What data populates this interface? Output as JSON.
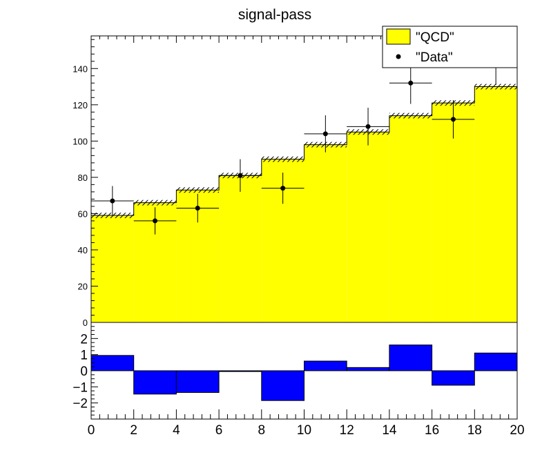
{
  "chart_data": [
    {
      "type": "bar",
      "title": "signal-pass",
      "xlabel": "",
      "ylabel": "",
      "xlim": [
        0,
        20
      ],
      "ylim": [
        0,
        158
      ],
      "yticks": [
        0,
        20,
        40,
        60,
        80,
        100,
        120,
        140
      ],
      "ytick_labels": [
        "0",
        "20",
        "40",
        "60",
        "80",
        "100",
        "120",
        "140"
      ],
      "bin_edges": [
        0,
        2,
        4,
        6,
        8,
        10,
        12,
        14,
        16,
        18,
        20
      ],
      "legend_position": "top-right",
      "series": [
        {
          "name": "\"QCD\"",
          "style": "filled-histogram",
          "color": "#ffff00",
          "values": [
            59,
            66,
            73,
            81,
            90,
            98,
            105,
            114,
            121,
            130
          ],
          "uncertainty": [
            1.5,
            1.5,
            1.5,
            1.5,
            1.5,
            1.5,
            1.5,
            1.5,
            1.5,
            1.5
          ]
        },
        {
          "name": "\"Data\"",
          "style": "points-with-errors",
          "color": "#000000",
          "x": [
            1,
            3,
            5,
            7,
            9,
            11,
            13,
            15,
            17,
            19
          ],
          "values": [
            67,
            56,
            63,
            81,
            74,
            104,
            108,
            132,
            112,
            143
          ],
          "errors": [
            8.2,
            7.5,
            7.9,
            9.0,
            8.6,
            10.2,
            10.4,
            11.5,
            10.6,
            12.0
          ]
        }
      ]
    },
    {
      "type": "bar",
      "title": "",
      "xlabel": "",
      "ylabel": "",
      "xlim": [
        0,
        20
      ],
      "ylim": [
        -3,
        3
      ],
      "xticks": [
        0,
        2,
        4,
        6,
        8,
        10,
        12,
        14,
        16,
        18,
        20
      ],
      "xtick_labels": [
        "0",
        "2",
        "4",
        "6",
        "8",
        "10",
        "12",
        "14",
        "16",
        "18",
        "20"
      ],
      "yticks": [
        -2,
        -1,
        0,
        1,
        2
      ],
      "ytick_labels": [
        "−2",
        "−1",
        "0",
        "1",
        "2"
      ],
      "bin_edges": [
        0,
        2,
        4,
        6,
        8,
        10,
        12,
        14,
        16,
        18,
        20
      ],
      "series": [
        {
          "style": "filled-histogram",
          "color": "#0000ff",
          "values": [
            0.95,
            -1.45,
            -1.35,
            -0.05,
            -1.85,
            0.6,
            0.2,
            1.6,
            -0.9,
            1.1
          ]
        }
      ]
    }
  ]
}
